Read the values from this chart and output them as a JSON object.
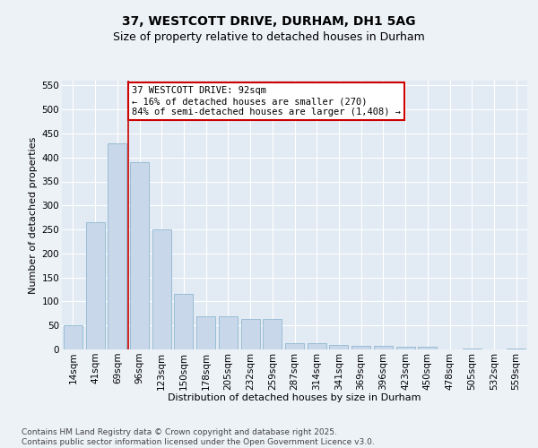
{
  "title_line1": "37, WESTCOTT DRIVE, DURHAM, DH1 5AG",
  "title_line2": "Size of property relative to detached houses in Durham",
  "xlabel": "Distribution of detached houses by size in Durham",
  "ylabel": "Number of detached properties",
  "categories": [
    "14sqm",
    "41sqm",
    "69sqm",
    "96sqm",
    "123sqm",
    "150sqm",
    "178sqm",
    "205sqm",
    "232sqm",
    "259sqm",
    "287sqm",
    "314sqm",
    "341sqm",
    "369sqm",
    "396sqm",
    "423sqm",
    "450sqm",
    "478sqm",
    "505sqm",
    "532sqm",
    "559sqm"
  ],
  "values": [
    50,
    265,
    430,
    390,
    250,
    115,
    70,
    70,
    63,
    63,
    13,
    13,
    10,
    7,
    7,
    5,
    5,
    0,
    2,
    0,
    2
  ],
  "bar_color": "#c8d8ea",
  "bar_edge_color": "#90b8d0",
  "vline_color": "#cc0000",
  "vline_x": 2.5,
  "annotation_text": "37 WESTCOTT DRIVE: 92sqm\n← 16% of detached houses are smaller (270)\n84% of semi-detached houses are larger (1,408) →",
  "annotation_box_edge_color": "#cc0000",
  "annotation_fontsize": 7.5,
  "ylim": [
    0,
    560
  ],
  "yticks": [
    0,
    50,
    100,
    150,
    200,
    250,
    300,
    350,
    400,
    450,
    500,
    550
  ],
  "background_color": "#edf2f7",
  "plot_background_color": "#e2eaf4",
  "grid_color": "#ffffff",
  "title_fontsize": 10,
  "subtitle_fontsize": 9,
  "axis_label_fontsize": 8,
  "tick_fontsize": 7.5,
  "footer_line1": "Contains HM Land Registry data © Crown copyright and database right 2025.",
  "footer_line2": "Contains public sector information licensed under the Open Government Licence v3.0.",
  "footer_fontsize": 6.5
}
